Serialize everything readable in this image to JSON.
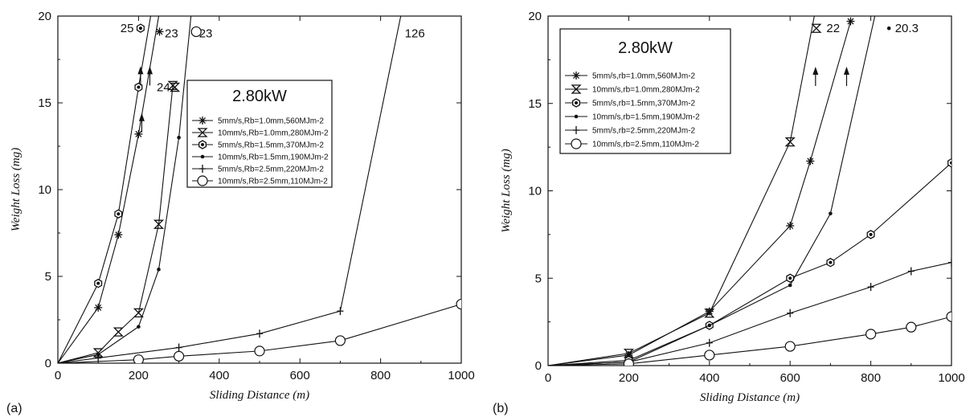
{
  "chart_data": [
    {
      "panel_label": "(a)",
      "type": "line",
      "xlabel": "Sliding Distance (m)",
      "ylabel": "Weight Loss (mg)",
      "xlim": [
        0,
        1000
      ],
      "ylim": [
        0,
        20
      ],
      "xticks": [
        "0",
        "200",
        "400",
        "600",
        "800",
        "1000"
      ],
      "yticks": [
        "0",
        "5",
        "10",
        "15",
        "20"
      ],
      "grid": false,
      "legend": {
        "title": "2.80kW",
        "position": "center-right",
        "entries": [
          "5mm/s,Rb=1.0mm,560MJm-2",
          "10mm/s,Rb=1.0mm,280MJm-2",
          "5mm/s,Rb=1.5mm,370MJm-2",
          "10mm/s,Rb=1.5mm,190MJm-2",
          "5mm/s,Rb=2.5mm,220MJm-2",
          "10mm/s,Rb=2.5mm,110MJm-2"
        ]
      },
      "series": [
        {
          "name": "5mm/s,Rb=1.0mm,560MJm-2",
          "marker": "asterisk",
          "x": [
            0,
            100,
            150,
            200,
            250
          ],
          "y": [
            0,
            3.2,
            7.4,
            13.2,
            20
          ]
        },
        {
          "name": "10mm/s,Rb=1.0mm,280MJm-2",
          "marker": "hourglass",
          "x": [
            0,
            100,
            150,
            200,
            250,
            285
          ],
          "y": [
            0,
            0.6,
            1.8,
            2.9,
            8.0,
            16.0
          ]
        },
        {
          "name": "5mm/s,Rb=1.5mm,370MJm-2",
          "marker": "hexagon",
          "x": [
            0,
            100,
            150,
            200,
            230
          ],
          "y": [
            0,
            4.6,
            8.6,
            15.9,
            20
          ]
        },
        {
          "name": "10mm/s,Rb=1.5mm,190MJm-2",
          "marker": "dot",
          "x": [
            0,
            100,
            200,
            250,
            300,
            330
          ],
          "y": [
            0,
            0.5,
            2.1,
            5.4,
            13.0,
            20
          ]
        },
        {
          "name": "5mm/s,Rb=2.5mm,220MJm-2",
          "marker": "plus",
          "x": [
            0,
            100,
            300,
            500,
            700,
            850
          ],
          "y": [
            0,
            0.3,
            0.9,
            1.7,
            3.0,
            20
          ]
        },
        {
          "name": "10mm/s,Rb=2.5mm,110MJm-2",
          "marker": "circle",
          "x": [
            0,
            200,
            300,
            500,
            700,
            1000
          ],
          "y": [
            0,
            0.2,
            0.4,
            0.7,
            1.3,
            3.4
          ]
        }
      ],
      "annotations": [
        {
          "text": "25",
          "x": 155,
          "y": 19.3
        },
        {
          "text": "23",
          "x": 265,
          "y": 19.0
        },
        {
          "text": "23",
          "x": 350,
          "y": 19.0
        },
        {
          "text": "24",
          "x": 245,
          "y": 15.9
        },
        {
          "text": "126",
          "x": 860,
          "y": 19.0
        }
      ]
    },
    {
      "panel_label": "(b)",
      "type": "line",
      "xlabel": "Sliding Distance (m)",
      "ylabel": "Weight Loss (mg)",
      "xlim": [
        0,
        1000
      ],
      "ylim": [
        0,
        20
      ],
      "xticks": [
        "0",
        "200",
        "400",
        "600",
        "800",
        "1000"
      ],
      "yticks": [
        "0",
        "5",
        "10",
        "15",
        "20"
      ],
      "grid": false,
      "legend": {
        "title": "2.80kW",
        "position": "top-left",
        "entries": [
          "5mm/s,rb=1.0mm,560MJm-2",
          "10mm/s,rb=1.0mm,280MJm-2",
          "5mm/s,rb=1.5mm,370MJm-2",
          "10mm/s,rb=1.5mm,190MJm-2",
          "5mm/s,rb=2.5mm,220MJm-2",
          "10mm/s,rb=2.5mm,110MJm-2"
        ]
      },
      "series": [
        {
          "name": "5mm/s,rb=1.0mm,560MJm-2",
          "marker": "asterisk",
          "x": [
            0,
            200,
            400,
            600,
            650,
            750
          ],
          "y": [
            0,
            0.6,
            3.1,
            8.0,
            11.7,
            19.7
          ]
        },
        {
          "name": "10mm/s,rb=1.0mm,280MJm-2",
          "marker": "hourglass",
          "x": [
            0,
            200,
            400,
            600,
            660
          ],
          "y": [
            0,
            0.7,
            3.0,
            12.8,
            20
          ]
        },
        {
          "name": "5mm/s,rb=1.5mm,370MJm-2",
          "marker": "hexagon",
          "x": [
            0,
            200,
            400,
            600,
            700,
            800,
            1000
          ],
          "y": [
            0,
            0.3,
            2.3,
            5.0,
            5.9,
            7.5,
            11.6
          ]
        },
        {
          "name": "10mm/s,rb=1.5mm,190MJm-2",
          "marker": "dot",
          "x": [
            0,
            200,
            400,
            600,
            700,
            810
          ],
          "y": [
            0,
            0.2,
            2.3,
            4.6,
            8.7,
            20
          ]
        },
        {
          "name": "5mm/s,rb=2.5mm,220MJm-2",
          "marker": "plus",
          "x": [
            0,
            200,
            400,
            600,
            800,
            900,
            1000
          ],
          "y": [
            0,
            0.2,
            1.3,
            3.0,
            4.5,
            5.4,
            5.9
          ]
        },
        {
          "name": "10mm/s,rb=2.5mm,110MJm-2",
          "marker": "circle",
          "x": [
            0,
            200,
            400,
            600,
            800,
            900,
            1000
          ],
          "y": [
            0,
            0.1,
            0.6,
            1.1,
            1.8,
            2.2,
            2.8
          ]
        }
      ],
      "annotations": [
        {
          "text": "22",
          "x": 690,
          "y": 19.3
        },
        {
          "text": "20.3",
          "x": 860,
          "y": 19.3
        }
      ]
    }
  ]
}
